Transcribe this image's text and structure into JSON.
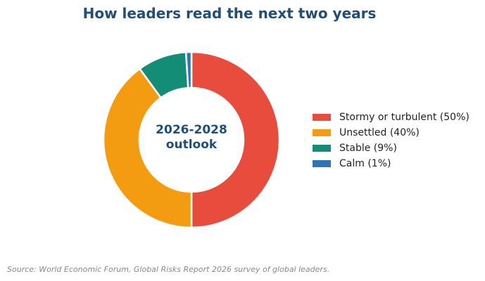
{
  "chart_data": {
    "type": "pie",
    "variant": "donut",
    "title": "How leaders read the next two years",
    "center_label": [
      "2026-2028",
      "outlook"
    ],
    "categories": [
      "Stormy or turbulent",
      "Unsettled",
      "Stable",
      "Calm"
    ],
    "values": [
      50,
      40,
      9,
      1
    ],
    "unit": "%",
    "colors": [
      "#e84c3d",
      "#f39c12",
      "#138d75",
      "#2e75b6"
    ],
    "legend": {
      "placement": "right",
      "entries": [
        "Stormy or turbulent (50%)",
        "Unsettled (40%)",
        "Stable (9%)",
        "Calm (1%)"
      ]
    },
    "start": "top",
    "direction": "clockwise"
  },
  "source": "Source: World Economic Forum, Global Risks Report 2026 survey of global leaders."
}
